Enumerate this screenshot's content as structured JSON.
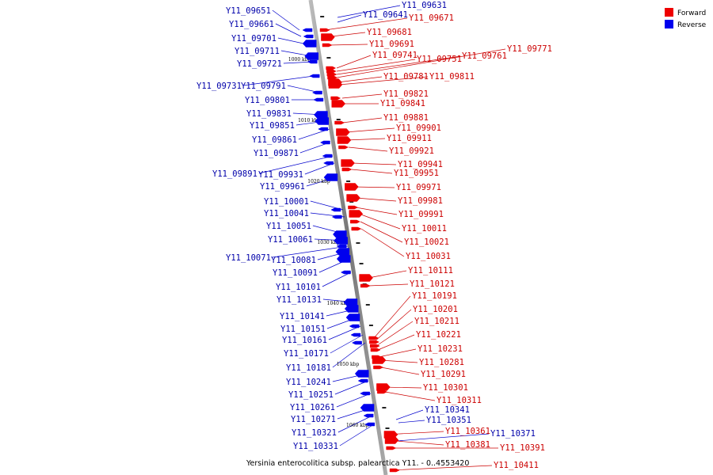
{
  "caption": "Yersinia enterocolitica subsp. palearctica Y11. - 0..4553420",
  "legend": [
    {
      "label": "Forward",
      "color": "#ee0000"
    },
    {
      "label": "Reverse",
      "color": "#0000ee"
    }
  ],
  "scale_ticks": [
    "1000 kbp",
    "1010 kbp",
    "1020 kbp",
    "1030 kbp",
    "1040 kbp",
    "1050 kbp",
    "1060 kbp"
  ],
  "reverse_genes": [
    {
      "label": "Y11_09651"
    },
    {
      "label": "Y11_09661"
    },
    {
      "label": "Y11_09701"
    },
    {
      "label": "Y11_09711"
    },
    {
      "label": "Y11_09721"
    },
    {
      "label": "Y11_09731"
    },
    {
      "label": "Y11_09791"
    },
    {
      "label": "Y11_09801"
    },
    {
      "label": "Y11_09831"
    },
    {
      "label": "Y11_09851"
    },
    {
      "label": "Y11_09861"
    },
    {
      "label": "Y11_09871"
    },
    {
      "label": "Y11_09891"
    },
    {
      "label": "Y11_09931"
    },
    {
      "label": "Y11_09961"
    },
    {
      "label": "Y11_10001"
    },
    {
      "label": "Y11_10041"
    },
    {
      "label": "Y11_10051"
    },
    {
      "label": "Y11_10061"
    },
    {
      "label": "Y11_10071"
    },
    {
      "label": "Y11_10081"
    },
    {
      "label": "Y11_10091"
    },
    {
      "label": "Y11_10101"
    },
    {
      "label": "Y11_10131"
    },
    {
      "label": "Y11_10141"
    },
    {
      "label": "Y11_10151"
    },
    {
      "label": "Y11_10161"
    },
    {
      "label": "Y11_10171"
    },
    {
      "label": "Y11_10181"
    },
    {
      "label": "Y11_10241"
    },
    {
      "label": "Y11_10251"
    },
    {
      "label": "Y11_10261"
    },
    {
      "label": "Y11_10271"
    },
    {
      "label": "Y11_10321"
    },
    {
      "label": "Y11_10331"
    },
    {
      "label": "Y11_09631"
    },
    {
      "label": "Y11_09641"
    },
    {
      "label": "Y11_10341"
    },
    {
      "label": "Y11_10351"
    },
    {
      "label": "Y11_10371"
    }
  ],
  "forward_genes": [
    {
      "label": "Y11_09671"
    },
    {
      "label": "Y11_09681"
    },
    {
      "label": "Y11_09691"
    },
    {
      "label": "Y11_09741"
    },
    {
      "label": "Y11_09751"
    },
    {
      "label": "Y11_09761"
    },
    {
      "label": "Y11_09771"
    },
    {
      "label": "Y11_09781"
    },
    {
      "label": "Y11_09811"
    },
    {
      "label": "Y11_09821"
    },
    {
      "label": "Y11_09841"
    },
    {
      "label": "Y11_09881"
    },
    {
      "label": "Y11_09901"
    },
    {
      "label": "Y11_09911"
    },
    {
      "label": "Y11_09921"
    },
    {
      "label": "Y11_09941"
    },
    {
      "label": "Y11_09951"
    },
    {
      "label": "Y11_09971"
    },
    {
      "label": "Y11_09981"
    },
    {
      "label": "Y11_09991"
    },
    {
      "label": "Y11_10011"
    },
    {
      "label": "Y11_10021"
    },
    {
      "label": "Y11_10031"
    },
    {
      "label": "Y11_10111"
    },
    {
      "label": "Y11_10121"
    },
    {
      "label": "Y11_10191"
    },
    {
      "label": "Y11_10201"
    },
    {
      "label": "Y11_10211"
    },
    {
      "label": "Y11_10221"
    },
    {
      "label": "Y11_10231"
    },
    {
      "label": "Y11_10281"
    },
    {
      "label": "Y11_10291"
    },
    {
      "label": "Y11_10301"
    },
    {
      "label": "Y11_10311"
    },
    {
      "label": "Y11_10361"
    },
    {
      "label": "Y11_10381"
    },
    {
      "label": "Y11_10391"
    },
    {
      "label": "Y11_10411"
    }
  ]
}
